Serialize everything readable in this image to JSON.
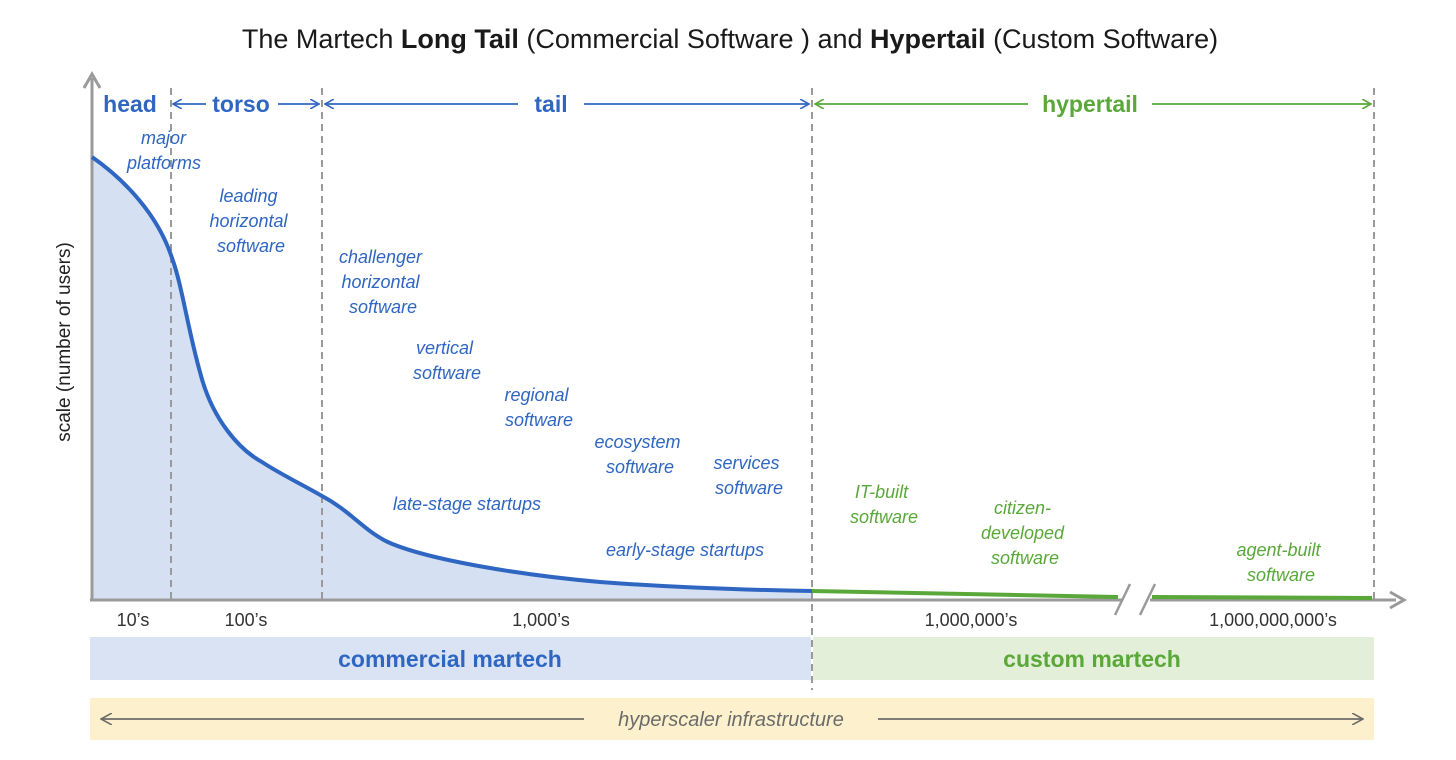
{
  "title": {
    "part1": "The Martech ",
    "bold1": "Long Tail",
    "part2": " (Commercial Software ) and ",
    "bold2": "Hypertail",
    "part3": " (Custom Software)"
  },
  "y_axis_label": "scale (number of users)",
  "segments": {
    "head": "head",
    "torso": "torso",
    "tail": "tail",
    "hypertail": "hypertail"
  },
  "curve_labels": {
    "major_platforms": [
      "major",
      "platforms"
    ],
    "leading_horizontal": [
      "leading",
      "horizontal",
      "software"
    ],
    "challenger_horizontal": [
      "challenger",
      "horizontal",
      "software"
    ],
    "vertical": [
      "vertical",
      "software"
    ],
    "regional": [
      "regional",
      "software"
    ],
    "ecosystem": [
      "ecosystem",
      "software"
    ],
    "services": [
      "services",
      "software"
    ],
    "late_stage": "late-stage startups",
    "early_stage": "early-stage startups",
    "it_built": [
      "IT-built",
      "software"
    ],
    "citizen_developed": [
      "citizen-",
      "developed",
      "software"
    ],
    "agent_built": [
      "agent-built",
      "software"
    ]
  },
  "x_ticks": {
    "t10": "10’s",
    "t100": "100’s",
    "t1000": "1,000’s",
    "t1m": "1,000,000’s",
    "t1b": "1,000,000,000’s"
  },
  "bands": {
    "commercial": "commercial martech",
    "custom": "custom martech",
    "infrastructure": "hyperscaler infrastructure"
  },
  "colors": {
    "blue": "#2f66c2",
    "green": "#5aa83a",
    "commercial_band": "#d9e3f3",
    "custom_band": "#e3efd9",
    "infra_band": "#fdf0cc",
    "area_fill": "#d5e0f2",
    "axis": "#9a9a9a"
  }
}
